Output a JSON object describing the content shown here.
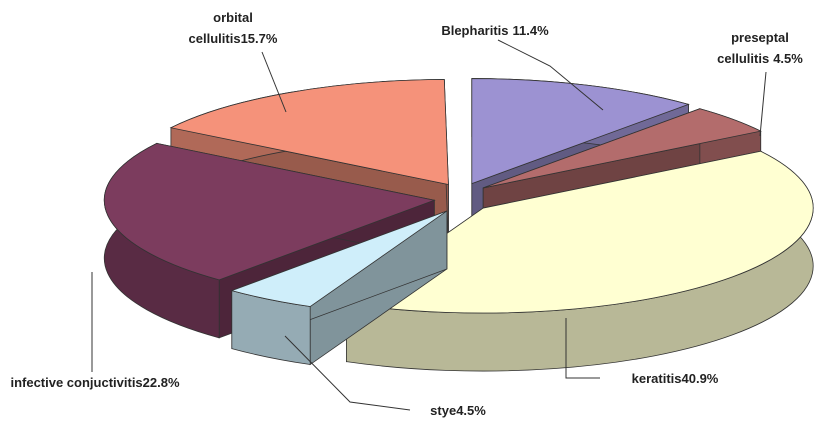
{
  "chart_data": {
    "type": "pie3d",
    "categories": [
      "Blepharitis",
      "preseptal cellulitis",
      "keratitis",
      "stye",
      "infective conjuctivitis",
      "orbital cellulitis"
    ],
    "values": [
      11.4,
      4.5,
      40.9,
      4.5,
      22.8,
      15.7
    ],
    "value_labels": [
      "11.4%",
      "4.5%",
      "40.9%",
      "4.5%",
      "22.8%",
      "15.7%"
    ],
    "colors": [
      "#9c92d2",
      "#b36c6c",
      "#ffffd2",
      "#cfeefa",
      "#7c3c5e",
      "#f5927a"
    ]
  }
}
